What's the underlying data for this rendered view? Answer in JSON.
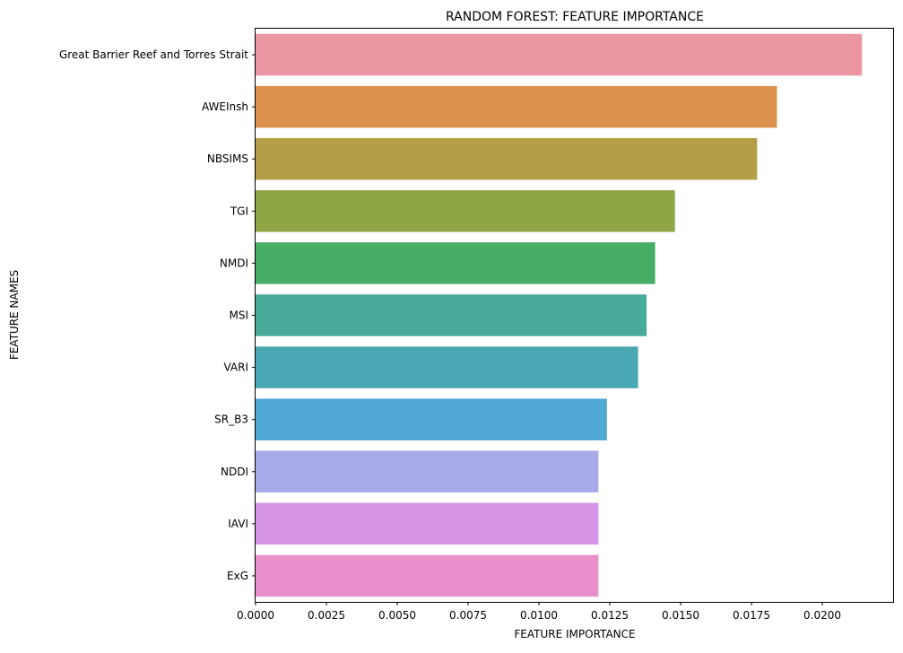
{
  "chart_data": {
    "type": "bar",
    "orientation": "horizontal",
    "title": "RANDOM FOREST: FEATURE IMPORTANCE",
    "xlabel": "FEATURE IMPORTANCE",
    "ylabel": "FEATURE NAMES",
    "xlim": [
      0,
      0.0225
    ],
    "x_ticks": [
      "0.0000",
      "0.0025",
      "0.0050",
      "0.0075",
      "0.0100",
      "0.0125",
      "0.0150",
      "0.0175",
      "0.0200"
    ],
    "categories": [
      "Great Barrier Reef and Torres Strait",
      "AWEInsh",
      "NBSIMS",
      "TGI",
      "NMDI",
      "MSI",
      "VARI",
      "SR_B3",
      "NDDI",
      "IAVI",
      "ExG"
    ],
    "values": [
      0.0214,
      0.0184,
      0.0177,
      0.0148,
      0.0141,
      0.0138,
      0.0135,
      0.0124,
      0.0121,
      0.0121,
      0.0121
    ],
    "colors": [
      "#ea96a3",
      "#dc914c",
      "#b39e47",
      "#8ea545",
      "#49ae65",
      "#48ab9a",
      "#4aa8b4",
      "#51a9d7",
      "#a7abea",
      "#d593e6",
      "#e88fcc"
    ],
    "grid": false,
    "legend": "none"
  }
}
